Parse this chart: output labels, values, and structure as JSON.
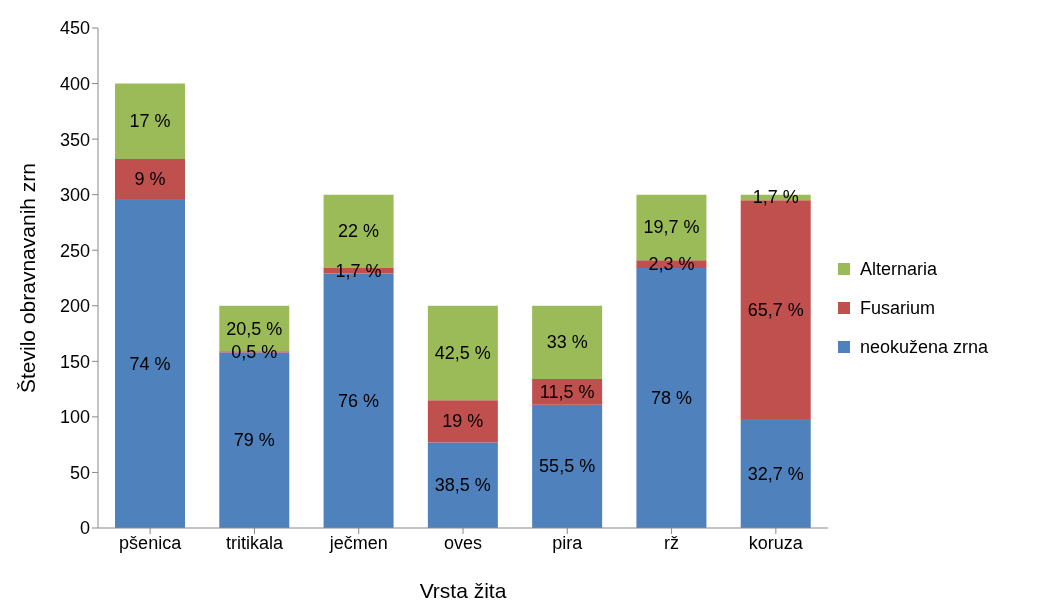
{
  "chart_data": {
    "type": "bar",
    "stacked": true,
    "xlabel": "Vrsta žita",
    "ylabel": "Število obravnavanih zrn",
    "categories": [
      "pšenica",
      "tritikala",
      "ječmen",
      "oves",
      "pira",
      "rž",
      "koruza"
    ],
    "ylim": [
      0,
      450
    ],
    "yticks": [
      0,
      50,
      100,
      150,
      200,
      250,
      300,
      350,
      400,
      450
    ],
    "grid": false,
    "legend": "right",
    "series": [
      {
        "name": "neokužena zrna",
        "color": "#4f81bd",
        "values": [
          296,
          158,
          229,
          77,
          111,
          234,
          98
        ]
      },
      {
        "name": "Fusarium",
        "color": "#c0504d",
        "values": [
          36,
          1,
          5,
          38,
          23,
          7,
          197
        ]
      },
      {
        "name": "Alternaria",
        "color": "#9bbb59",
        "values": [
          68,
          41,
          66,
          85,
          66,
          59,
          5
        ]
      }
    ],
    "annotations": [
      "74 %",
      "9 %",
      "17 %",
      "79 %",
      "0,5 %",
      "20,5 %",
      "76 %",
      "1,7 %",
      "22 %",
      "38,5 %",
      "19 %",
      "42,5 %",
      "55,5 %",
      "11,5 %",
      "33 %",
      "78 %",
      "2,3 %",
      "19,7 %",
      "32,7 %",
      "65,7 %",
      "1,7 %"
    ]
  }
}
